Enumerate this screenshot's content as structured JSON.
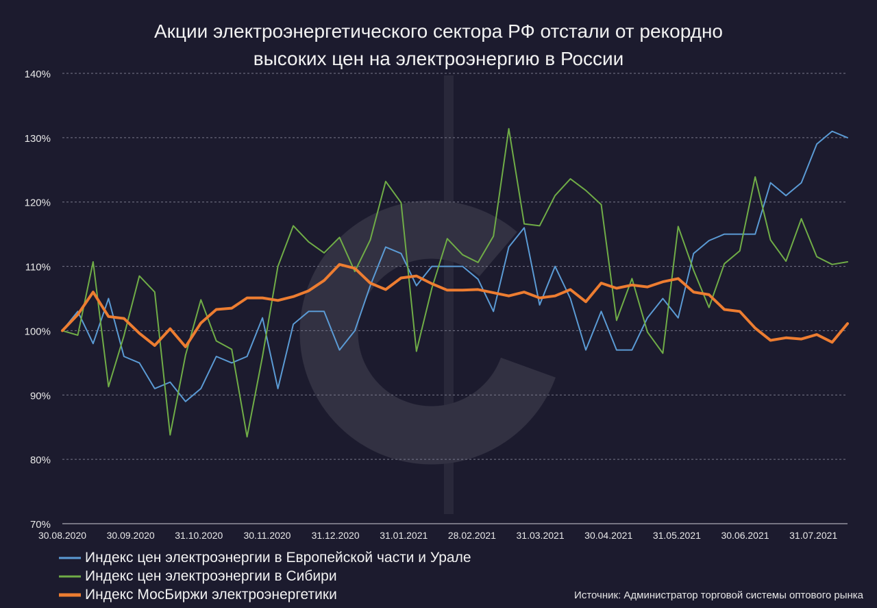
{
  "chart_data": {
    "type": "line",
    "title_line1": "Акции электроэнергетического сектора РФ отстали от рекордно",
    "title_line2": "высоких цен на электроэнергию в России",
    "source": "Источник: Администратор торговой системы оптового рынка",
    "ylim": [
      70,
      140
    ],
    "yticks": [
      70,
      80,
      90,
      100,
      110,
      120,
      130,
      140
    ],
    "ytick_labels": [
      "70%",
      "80%",
      "90%",
      "100%",
      "110%",
      "120%",
      "130%",
      "140%"
    ],
    "xtick_labels": [
      "30.08.2020",
      "30.09.2020",
      "31.10.2020",
      "30.11.2020",
      "31.12.2020",
      "31.01.2021",
      "28.02.2021",
      "31.03.2021",
      "30.04.2021",
      "31.05.2021",
      "30.06.2021",
      "31.07.2021"
    ],
    "grid": true,
    "legend_position": "bottom-left",
    "series": [
      {
        "name": "Индекс цен электроэнергии в Европейской части и Урале",
        "color": "#5b9bd5",
        "width": 2,
        "values": [
          100,
          103,
          98,
          105,
          96,
          95,
          91,
          92,
          89,
          91,
          96,
          95,
          96,
          102,
          91,
          101,
          103,
          103,
          97,
          100,
          107,
          113,
          112,
          107,
          110,
          110,
          110,
          108,
          103,
          113,
          116,
          104,
          110,
          105,
          97,
          103,
          97,
          97,
          102,
          105,
          102,
          112,
          114,
          115,
          115,
          115,
          123,
          121,
          123,
          129,
          131,
          130
        ]
      },
      {
        "name": "Индекс цен электроэнергии в Сибири",
        "color": "#70ad47",
        "width": 2,
        "values": [
          100,
          99.3,
          110.7,
          91.3,
          99.2,
          108.5,
          106,
          83.8,
          96.2,
          104.8,
          98.4,
          97.1,
          83.5,
          96,
          110,
          116.3,
          113.8,
          112.1,
          114.5,
          109.2,
          114.1,
          123.2,
          119.9,
          96.8,
          106.6,
          114.3,
          111.8,
          110.6,
          114.7,
          131.4,
          116.6,
          116.3,
          121,
          123.6,
          121.8,
          119.6,
          101.6,
          108.1,
          99.8,
          96.5,
          116.2,
          109.4,
          103.6,
          110.4,
          112.4,
          123.9,
          114.1,
          110.8,
          117.4,
          111.5,
          110.3,
          110.7
        ]
      },
      {
        "name": "Индекс МосБиржи электроэнергетики",
        "color": "#ed7d31",
        "width": 4,
        "values": [
          100,
          102.5,
          106,
          102.2,
          101.9,
          99.6,
          97.7,
          100.3,
          97.5,
          101.2,
          103.3,
          103.5,
          105.1,
          105.1,
          104.7,
          105.3,
          106.2,
          107.8,
          110.3,
          109.7,
          107.4,
          106.4,
          108.2,
          108.5,
          107.3,
          106.3,
          106.3,
          106.4,
          105.9,
          105.4,
          106,
          105.1,
          105.4,
          106.4,
          104.5,
          107.4,
          106.6,
          107.1,
          106.8,
          107.6,
          108.1,
          106,
          105.6,
          103.3,
          103,
          100.4,
          98.5,
          98.9,
          98.7,
          99.4,
          98.2,
          101.1
        ]
      }
    ]
  },
  "watermark_icon": "c-logo-icon"
}
